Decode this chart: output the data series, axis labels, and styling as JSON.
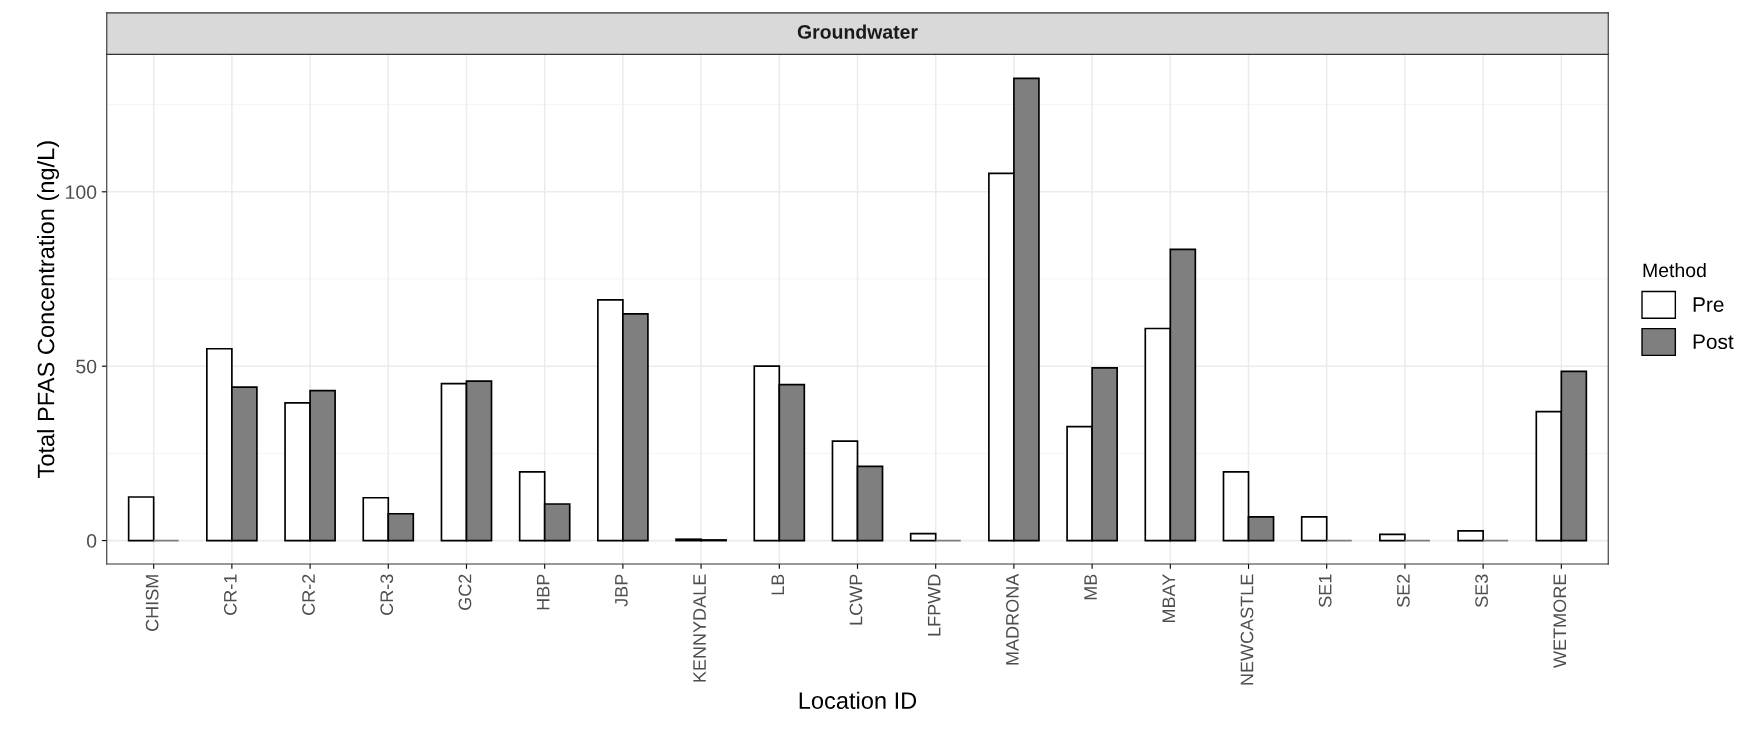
{
  "chart_data": {
    "type": "bar",
    "title": "Groundwater",
    "xlabel": "Location ID",
    "ylabel": "Total PFAS Concentration (ng/L)",
    "legend_title": "Method",
    "categories": [
      "CHISM",
      "CR-1",
      "CR-2",
      "CR-3",
      "GC2",
      "HBP",
      "JBP",
      "KENNYDALE",
      "LB",
      "LCWP",
      "LFPWD",
      "MADRONA",
      "MB",
      "MBAY",
      "NEWCASTLE",
      "SE1",
      "SE2",
      "SE3",
      "WETMORE"
    ],
    "series": [
      {
        "name": "Pre",
        "color": "#ffffff",
        "values": [
          12.5,
          55,
          39.5,
          12.3,
          45,
          19.7,
          69,
          0.4,
          50,
          28.5,
          2,
          105.3,
          32.7,
          60.8,
          19.7,
          6.8,
          1.8,
          2.8,
          37
        ]
      },
      {
        "name": "Post",
        "color": "#7f7f7f",
        "values": [
          0,
          44,
          43,
          7.7,
          45.7,
          10.5,
          65,
          0.2,
          44.7,
          21.3,
          0,
          132.5,
          49.5,
          83.5,
          6.8,
          0,
          0,
          0,
          48.5
        ]
      }
    ],
    "ylim": [
      -6.7,
      139.4
    ],
    "yticks": [
      0,
      50,
      100
    ],
    "grid": true,
    "legend": "right"
  }
}
